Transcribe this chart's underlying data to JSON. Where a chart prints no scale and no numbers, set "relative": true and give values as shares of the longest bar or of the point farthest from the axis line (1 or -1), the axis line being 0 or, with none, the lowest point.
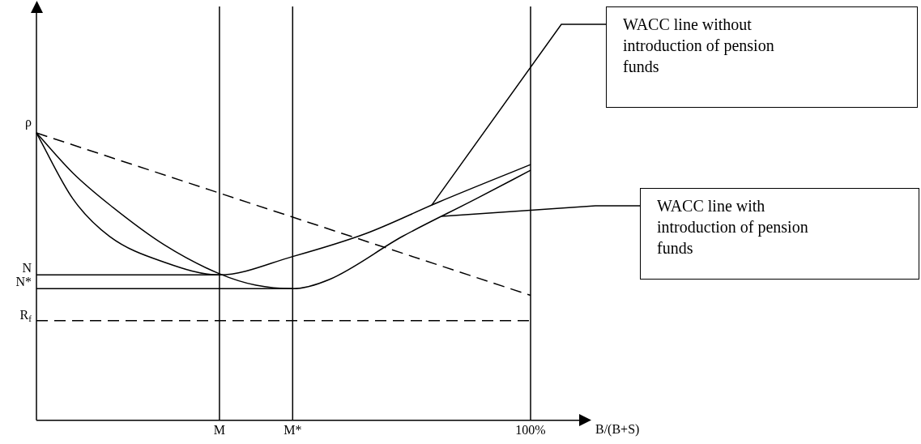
{
  "chart_data": {
    "type": "line",
    "relative": true,
    "xlabel": "B/(B+S)",
    "categories": [
      null,
      null,
      null,
      null,
      null,
      null,
      null,
      null,
      null,
      null,
      "M",
      null,
      null,
      null,
      "M*",
      null,
      null,
      null,
      null,
      null,
      null,
      null,
      null,
      null,
      null,
      null,
      null,
      "100%"
    ],
    "series": [
      {
        "name": "WACC line without introduction of pension funds",
        "color": "#000000",
        "values": [
          1,
          null,
          0.77,
          null,
          0.64,
          null,
          null,
          0.55,
          null,
          null,
          0.506,
          null,
          null,
          null,
          0.57,
          null,
          null,
          null,
          0.65,
          null,
          null,
          null,
          0.76,
          null,
          null,
          null,
          null,
          0.89
        ]
      },
      {
        "name": "WACC line with introduction of pension funds",
        "color": "#000000",
        "values": [
          1,
          null,
          0.86,
          null,
          0.75,
          null,
          null,
          0.61,
          null,
          null,
          0.51,
          null,
          0.47,
          null,
          0.458,
          null,
          0.49,
          null,
          null,
          null,
          0.64,
          null,
          null,
          null,
          0.77,
          null,
          null,
          0.87
        ]
      },
      {
        "color": "#000000",
        "values": [
          1,
          null,
          null,
          null,
          null,
          null,
          null,
          null,
          null,
          null,
          null,
          null,
          null,
          null,
          null,
          null,
          null,
          null,
          null,
          null,
          null,
          null,
          null,
          null,
          null,
          null,
          null,
          0.435
        ],
        "line_style": "dashed"
      },
      {
        "name": "N",
        "color": "#000000",
        "values": [
          0.506,
          null,
          null,
          null,
          null,
          null,
          null,
          null,
          null,
          null,
          0.506,
          null,
          null,
          null,
          null,
          null,
          null,
          null,
          null,
          null,
          null,
          null,
          null,
          null,
          null,
          null,
          null,
          null
        ]
      },
      {
        "name": "N*",
        "color": "#000000",
        "values": [
          0.458,
          null,
          null,
          null,
          null,
          null,
          null,
          null,
          null,
          null,
          null,
          null,
          null,
          null,
          0.458,
          null,
          null,
          null,
          null,
          null,
          null,
          null,
          null,
          null,
          null,
          null,
          null,
          null
        ]
      }
    ],
    "ref_lines": [
      {
        "axis": "x",
        "value": "M"
      },
      {
        "axis": "x",
        "value": "M*"
      },
      {
        "axis": "x",
        "value": "100%"
      },
      {
        "axis": "y",
        "value": 0.347,
        "label": "R$_{f}$",
        "line_style": "dashed"
      }
    ],
    "annotations": [
      "ρ"
    ],
    "legend": false,
    "marker": "none"
  }
}
